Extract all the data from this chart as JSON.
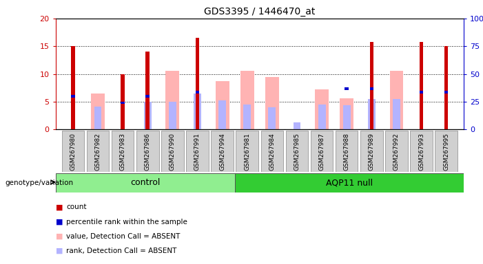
{
  "title": "GDS3395 / 1446470_at",
  "samples": [
    "GSM267980",
    "GSM267982",
    "GSM267983",
    "GSM267986",
    "GSM267990",
    "GSM267991",
    "GSM267994",
    "GSM267981",
    "GSM267984",
    "GSM267985",
    "GSM267987",
    "GSM267988",
    "GSM267989",
    "GSM267992",
    "GSM267993",
    "GSM267995"
  ],
  "count": [
    15.0,
    0,
    10.0,
    14.0,
    0,
    16.5,
    0,
    0,
    0,
    0,
    0,
    0,
    15.8,
    0,
    15.8,
    15.0
  ],
  "percentile": [
    6.0,
    0,
    4.8,
    6.0,
    0,
    6.7,
    0,
    0,
    0,
    0,
    0,
    7.3,
    7.3,
    0,
    6.7,
    6.7
  ],
  "value_absent": [
    0,
    6.5,
    0,
    0,
    10.5,
    0,
    8.7,
    10.5,
    9.5,
    0,
    7.2,
    5.6,
    0,
    10.5,
    0,
    0
  ],
  "rank_absent": [
    0,
    4.1,
    0,
    5.0,
    5.0,
    6.5,
    5.2,
    4.5,
    4.0,
    1.2,
    4.5,
    4.4,
    5.5,
    5.5,
    0,
    0
  ],
  "n_control": 7,
  "ylim_left": [
    0,
    20
  ],
  "ylim_right": [
    0,
    100
  ],
  "yticks_left": [
    0,
    5,
    10,
    15,
    20
  ],
  "yticks_right": [
    0,
    25,
    50,
    75,
    100
  ],
  "ytick_labels_right": [
    "0",
    "25",
    "50",
    "75",
    "100%"
  ],
  "color_count": "#cc0000",
  "color_percentile": "#0000cc",
  "color_value_absent": "#ffb3b3",
  "color_rank_absent": "#b3b3ff",
  "color_control_bg": "#90ee90",
  "color_aqp11_bg": "#33cc33",
  "bar_width": 0.55,
  "background_color": "#ffffff",
  "plot_bg": "#ffffff",
  "tick_bg": "#d0d0d0",
  "legend_items": [
    "count",
    "percentile rank within the sample",
    "value, Detection Call = ABSENT",
    "rank, Detection Call = ABSENT"
  ],
  "legend_colors": [
    "#cc0000",
    "#0000cc",
    "#ffb3b3",
    "#b3b3ff"
  ],
  "xlabel_genotype": "genotype/variation",
  "label_control": "control",
  "label_aqp11": "AQP11 null"
}
